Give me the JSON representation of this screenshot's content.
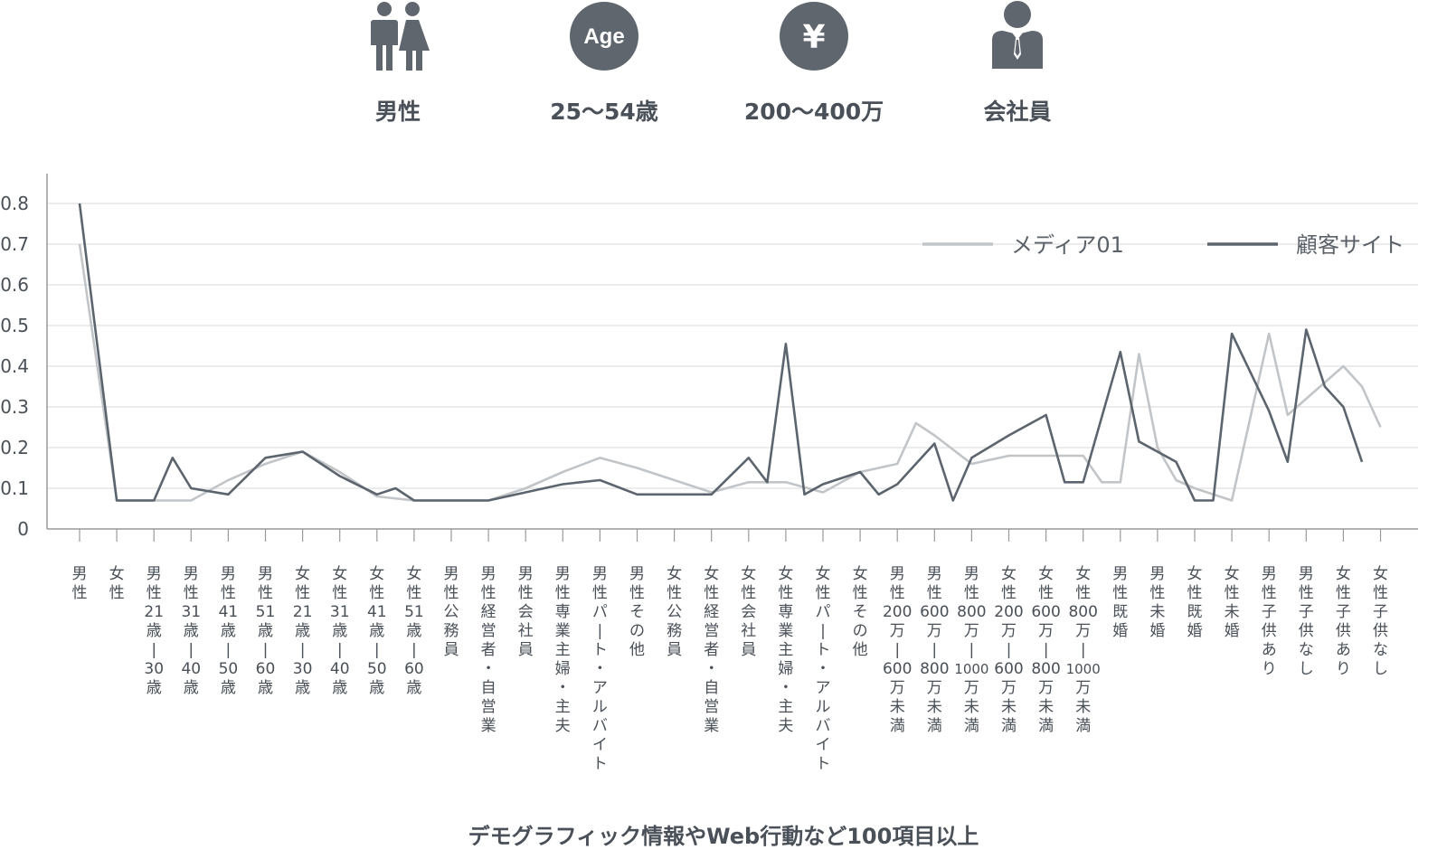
{
  "persona": [
    {
      "icon": "gender-icon",
      "label": "男性"
    },
    {
      "icon": "age-icon",
      "icon_text": "Age",
      "label": "25〜54歳"
    },
    {
      "icon": "yen-icon",
      "icon_text": "¥",
      "label": "200〜400万"
    },
    {
      "icon": "businessperson-icon",
      "label": "会社員"
    }
  ],
  "footer": "デモグラフィック情報やWeb行動など100項目以上",
  "colors": {
    "icon": "#5f666d",
    "media": "#c2c5c8",
    "site": "#5c656e",
    "grid": "#e6e6e6",
    "axis": "#999999",
    "text": "#4a5058"
  },
  "chart_data": {
    "type": "line",
    "ylim": [
      0,
      0.85
    ],
    "yticks": [
      0,
      0.1,
      0.2,
      0.3,
      0.4,
      0.5,
      0.6,
      0.7,
      0.8
    ],
    "ytick_labels": [
      "0",
      "0.1",
      "0.2",
      "0.3",
      "0.4",
      "0.5",
      "0.6",
      "0.7",
      "0.8"
    ],
    "grid": true,
    "legend_position": "top-right",
    "categories": [
      "男性",
      "女性",
      "男性21歳|30歳",
      "男性31歳|40歳",
      "男性41歳|50歳",
      "男性51歳|60歳",
      "女性21歳|30歳",
      "女性31歳|40歳",
      "女性41歳|50歳",
      "女性51歳|60歳",
      "男性公務員",
      "男性経営者・自営業",
      "男性会社員",
      "男性専業主婦・主夫",
      "男性パ|ト・アルバイト",
      "男性その他",
      "女性公務員",
      "女性経営者・自営業",
      "女性会社員",
      "女性専業主婦・主夫",
      "女性パ|ト・アルバイト",
      "女性その他",
      "男性200万|600万未満",
      "男性600万|800万未満",
      "男性800万|1000万未満",
      "女性200万|600万未満",
      "女性600万|800万未満",
      "女性800万|1000万未満",
      "男性既婚",
      "男性未婚",
      "女性既婚",
      "女性未婚",
      "男性子供あり",
      "男性子供なし",
      "女性子供あり",
      "女性子供なし"
    ],
    "category_columns": [
      [
        "男",
        "性"
      ],
      [
        "女",
        "性"
      ],
      [
        "男",
        "性",
        "21",
        "歳",
        "|",
        "30",
        "歳"
      ],
      [
        "男",
        "性",
        "31",
        "歳",
        "|",
        "40",
        "歳"
      ],
      [
        "男",
        "性",
        "41",
        "歳",
        "|",
        "50",
        "歳"
      ],
      [
        "男",
        "性",
        "51",
        "歳",
        "|",
        "60",
        "歳"
      ],
      [
        "女",
        "性",
        "21",
        "歳",
        "|",
        "30",
        "歳"
      ],
      [
        "女",
        "性",
        "31",
        "歳",
        "|",
        "40",
        "歳"
      ],
      [
        "女",
        "性",
        "41",
        "歳",
        "|",
        "50",
        "歳"
      ],
      [
        "女",
        "性",
        "51",
        "歳",
        "|",
        "60",
        "歳"
      ],
      [
        "男",
        "性",
        "公",
        "務",
        "員"
      ],
      [
        "男",
        "性",
        "経",
        "営",
        "者",
        "・",
        "自",
        "営",
        "業"
      ],
      [
        "男",
        "性",
        "会",
        "社",
        "員"
      ],
      [
        "男",
        "性",
        "専",
        "業",
        "主",
        "婦",
        "・",
        "主",
        "夫"
      ],
      [
        "男",
        "性",
        "パ",
        "|",
        "ト",
        "・",
        "ア",
        "ル",
        "バ",
        "イ",
        "ト"
      ],
      [
        "男",
        "性",
        "そ",
        "の",
        "他"
      ],
      [
        "女",
        "性",
        "公",
        "務",
        "員"
      ],
      [
        "女",
        "性",
        "経",
        "営",
        "者",
        "・",
        "自",
        "営",
        "業"
      ],
      [
        "女",
        "性",
        "会",
        "社",
        "員"
      ],
      [
        "女",
        "性",
        "専",
        "業",
        "主",
        "婦",
        "・",
        "主",
        "夫"
      ],
      [
        "女",
        "性",
        "パ",
        "|",
        "ト",
        "・",
        "ア",
        "ル",
        "バ",
        "イ",
        "ト"
      ],
      [
        "女",
        "性",
        "そ",
        "の",
        "他"
      ],
      [
        "男",
        "性",
        "200",
        "万",
        "|",
        "600",
        "万",
        "未",
        "満"
      ],
      [
        "男",
        "性",
        "600",
        "万",
        "|",
        "800",
        "万",
        "未",
        "満"
      ],
      [
        "男",
        "性",
        "800",
        "万",
        "|",
        "1000",
        "万",
        "未",
        "満"
      ],
      [
        "女",
        "性",
        "200",
        "万",
        "|",
        "600",
        "万",
        "未",
        "満"
      ],
      [
        "女",
        "性",
        "600",
        "万",
        "|",
        "800",
        "万",
        "未",
        "満"
      ],
      [
        "女",
        "性",
        "800",
        "万",
        "|",
        "1000",
        "万",
        "未",
        "満"
      ],
      [
        "男",
        "性",
        "既",
        "婚"
      ],
      [
        "男",
        "性",
        "未",
        "婚"
      ],
      [
        "女",
        "性",
        "既",
        "婚"
      ],
      [
        "女",
        "性",
        "未",
        "婚"
      ],
      [
        "男",
        "性",
        "子",
        "供",
        "あ",
        "り"
      ],
      [
        "男",
        "性",
        "子",
        "供",
        "な",
        "し"
      ],
      [
        "女",
        "性",
        "子",
        "供",
        "あ",
        "り"
      ],
      [
        "女",
        "性",
        "子",
        "供",
        "な",
        "し"
      ]
    ],
    "series": [
      {
        "name": "メディア01",
        "color": "#c2c5c8",
        "points": [
          [
            0,
            0.7
          ],
          [
            1,
            0.07
          ],
          [
            2,
            0.07
          ],
          [
            3,
            0.07
          ],
          [
            4,
            0.12
          ],
          [
            5,
            0.16
          ],
          [
            6,
            0.19
          ],
          [
            7,
            0.14
          ],
          [
            8,
            0.08
          ],
          [
            9,
            0.07
          ],
          [
            10,
            0.07
          ],
          [
            11,
            0.07
          ],
          [
            12,
            0.1
          ],
          [
            13,
            0.14
          ],
          [
            14,
            0.175
          ],
          [
            15,
            0.15
          ],
          [
            16,
            0.12
          ],
          [
            17,
            0.09
          ],
          [
            18,
            0.115
          ],
          [
            19,
            0.115
          ],
          [
            20,
            0.09
          ],
          [
            21,
            0.14
          ],
          [
            22,
            0.16
          ],
          [
            22.5,
            0.26
          ],
          [
            23,
            0.23
          ],
          [
            24,
            0.16
          ],
          [
            25,
            0.18
          ],
          [
            26,
            0.18
          ],
          [
            27,
            0.18
          ],
          [
            27.5,
            0.115
          ],
          [
            28,
            0.115
          ],
          [
            28.5,
            0.43
          ],
          [
            29,
            0.2
          ],
          [
            29.5,
            0.12
          ],
          [
            30,
            0.1
          ],
          [
            31,
            0.07
          ],
          [
            32,
            0.48
          ],
          [
            32.5,
            0.28
          ],
          [
            33,
            0.32
          ],
          [
            34,
            0.4
          ],
          [
            34.5,
            0.35
          ],
          [
            35,
            0.25
          ]
        ]
      },
      {
        "name": "顧客サイト",
        "color": "#5c656e",
        "points": [
          [
            0,
            0.8
          ],
          [
            1,
            0.07
          ],
          [
            2,
            0.07
          ],
          [
            2.5,
            0.175
          ],
          [
            3,
            0.1
          ],
          [
            4,
            0.085
          ],
          [
            5,
            0.175
          ],
          [
            6,
            0.19
          ],
          [
            7,
            0.13
          ],
          [
            8,
            0.085
          ],
          [
            8.5,
            0.1
          ],
          [
            9,
            0.07
          ],
          [
            10,
            0.07
          ],
          [
            11,
            0.07
          ],
          [
            12,
            0.09
          ],
          [
            13,
            0.11
          ],
          [
            14,
            0.12
          ],
          [
            15,
            0.085
          ],
          [
            16,
            0.085
          ],
          [
            17,
            0.085
          ],
          [
            18,
            0.175
          ],
          [
            18.5,
            0.115
          ],
          [
            19,
            0.455
          ],
          [
            19.5,
            0.085
          ],
          [
            20,
            0.11
          ],
          [
            21,
            0.14
          ],
          [
            21.5,
            0.085
          ],
          [
            22,
            0.11
          ],
          [
            23,
            0.21
          ],
          [
            23.5,
            0.07
          ],
          [
            24,
            0.175
          ],
          [
            25,
            0.23
          ],
          [
            26,
            0.28
          ],
          [
            26.5,
            0.115
          ],
          [
            27,
            0.115
          ],
          [
            28,
            0.435
          ],
          [
            28.5,
            0.215
          ],
          [
            29,
            0.19
          ],
          [
            29.5,
            0.165
          ],
          [
            30,
            0.07
          ],
          [
            30.5,
            0.07
          ],
          [
            31,
            0.48
          ],
          [
            32,
            0.29
          ],
          [
            32.5,
            0.165
          ],
          [
            33,
            0.49
          ],
          [
            33.5,
            0.35
          ],
          [
            34,
            0.3
          ],
          [
            34.5,
            0.165
          ]
        ]
      }
    ]
  }
}
